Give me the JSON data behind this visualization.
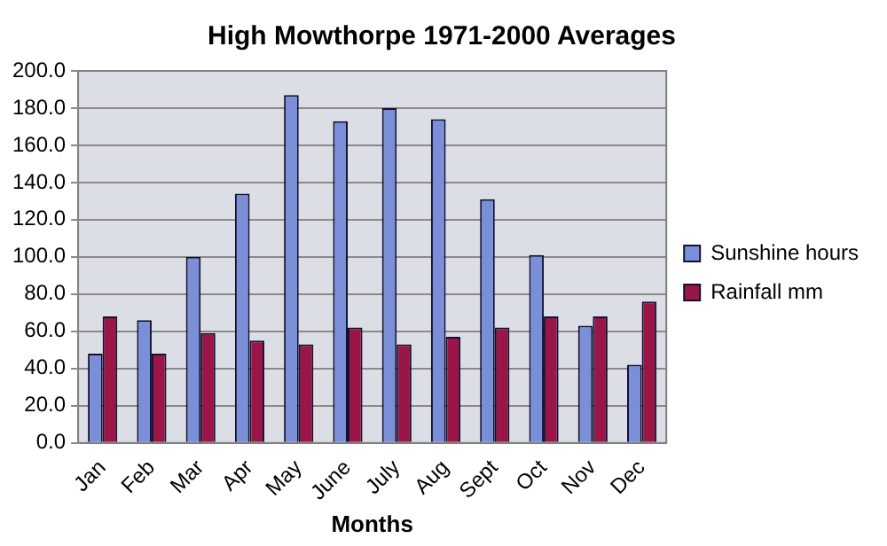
{
  "chart_data": {
    "type": "bar",
    "title": "High Mowthorpe 1971-2000 Averages",
    "xlabel": "Months",
    "categories": [
      "Jan",
      "Feb",
      "Mar",
      "Apr",
      "May",
      "June",
      "July",
      "Aug",
      "Sept",
      "Oct",
      "Nov",
      "Dec"
    ],
    "series": [
      {
        "name": "Sunshine hours",
        "color": "#7b8fd8",
        "values": [
          48,
          66,
          100,
          134,
          187,
          173,
          180,
          174,
          131,
          101,
          63,
          42
        ]
      },
      {
        "name": "Rainfall mm",
        "color": "#9b1546",
        "values": [
          68,
          48,
          59,
          55,
          53,
          62,
          53,
          57,
          62,
          68,
          68,
          76
        ]
      }
    ],
    "ylim": [
      0,
      200
    ],
    "yticks": [
      {
        "value": 0,
        "label": "0.0"
      },
      {
        "value": 20,
        "label": "20.0"
      },
      {
        "value": 40,
        "label": "40.0"
      },
      {
        "value": 60,
        "label": "60.0"
      },
      {
        "value": 80,
        "label": "80.0"
      },
      {
        "value": 100,
        "label": "100.0"
      },
      {
        "value": 120,
        "label": "120.0"
      },
      {
        "value": 140,
        "label": "140.0"
      },
      {
        "value": 160,
        "label": "160.0"
      },
      {
        "value": 180,
        "label": "180.0"
      },
      {
        "value": 200,
        "label": "200.0"
      }
    ],
    "grid": "y",
    "legend": "right"
  }
}
